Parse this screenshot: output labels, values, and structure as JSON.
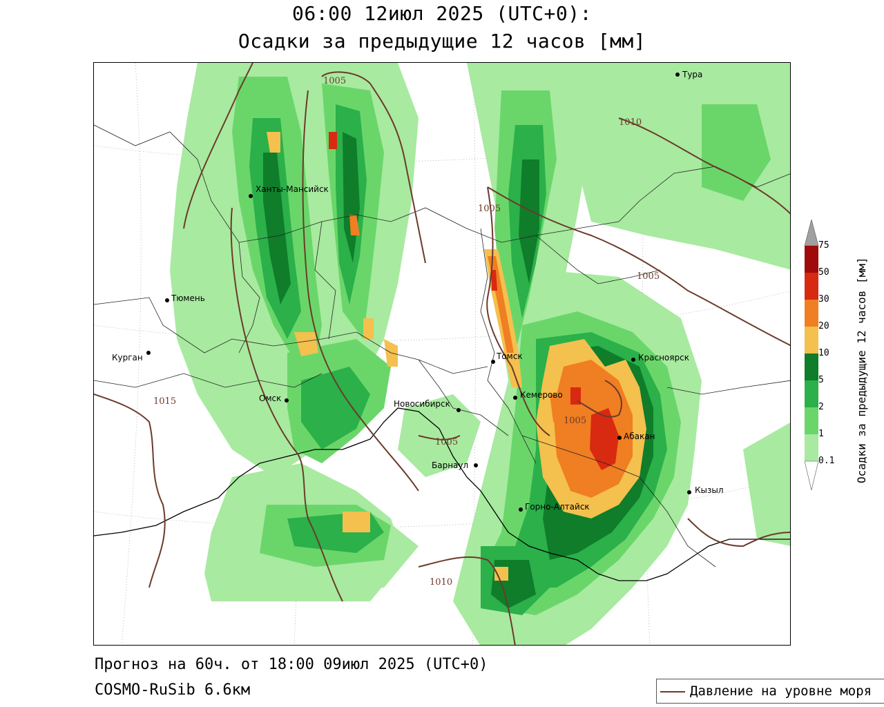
{
  "title": {
    "line1": "06:00 12июл 2025 (UTC+0):",
    "line2": "Осадки за предыдущие 12 часов [мм]"
  },
  "footer": {
    "forecast": "Прогноз на 60ч. от 18:00 09июл 2025 (UTC+0)",
    "model": "COSMO-RuSib 6.6км"
  },
  "legend": {
    "pressure_label": "Давление на уровне моря",
    "line_color": "#6b3a2a"
  },
  "colorbar": {
    "title": "Осадки за предыдущие 12 часов [мм]",
    "ticks": [
      "0.1",
      "1",
      "2",
      "5",
      "10",
      "20",
      "30",
      "50",
      "75"
    ],
    "colors": {
      "0.1-1": "#a8eaa0",
      "1-2": "#6ad66a",
      "2-5": "#2bb04a",
      "5-10": "#0f7d2a",
      "10-20": "#f4c04e",
      "20-30": "#f07e22",
      "30-50": "#d82a10",
      "50-75": "#a00a0a",
      "over-75": "#a0a0a0"
    }
  },
  "cities": [
    {
      "name": "Тура"
    },
    {
      "name": "Ханты-Мансийск"
    },
    {
      "name": "Тюмень"
    },
    {
      "name": "Курган"
    },
    {
      "name": "Омск"
    },
    {
      "name": "Новосибирск"
    },
    {
      "name": "Барнаул"
    },
    {
      "name": "Томск"
    },
    {
      "name": "Кемерово"
    },
    {
      "name": "Красноярск"
    },
    {
      "name": "Абакан"
    },
    {
      "name": "Кызыл"
    },
    {
      "name": "Горно-Алтайск"
    }
  ],
  "isobar_labels": [
    "1005",
    "1010",
    "1005",
    "1015",
    "1005",
    "1005",
    "1010",
    "1005"
  ]
}
